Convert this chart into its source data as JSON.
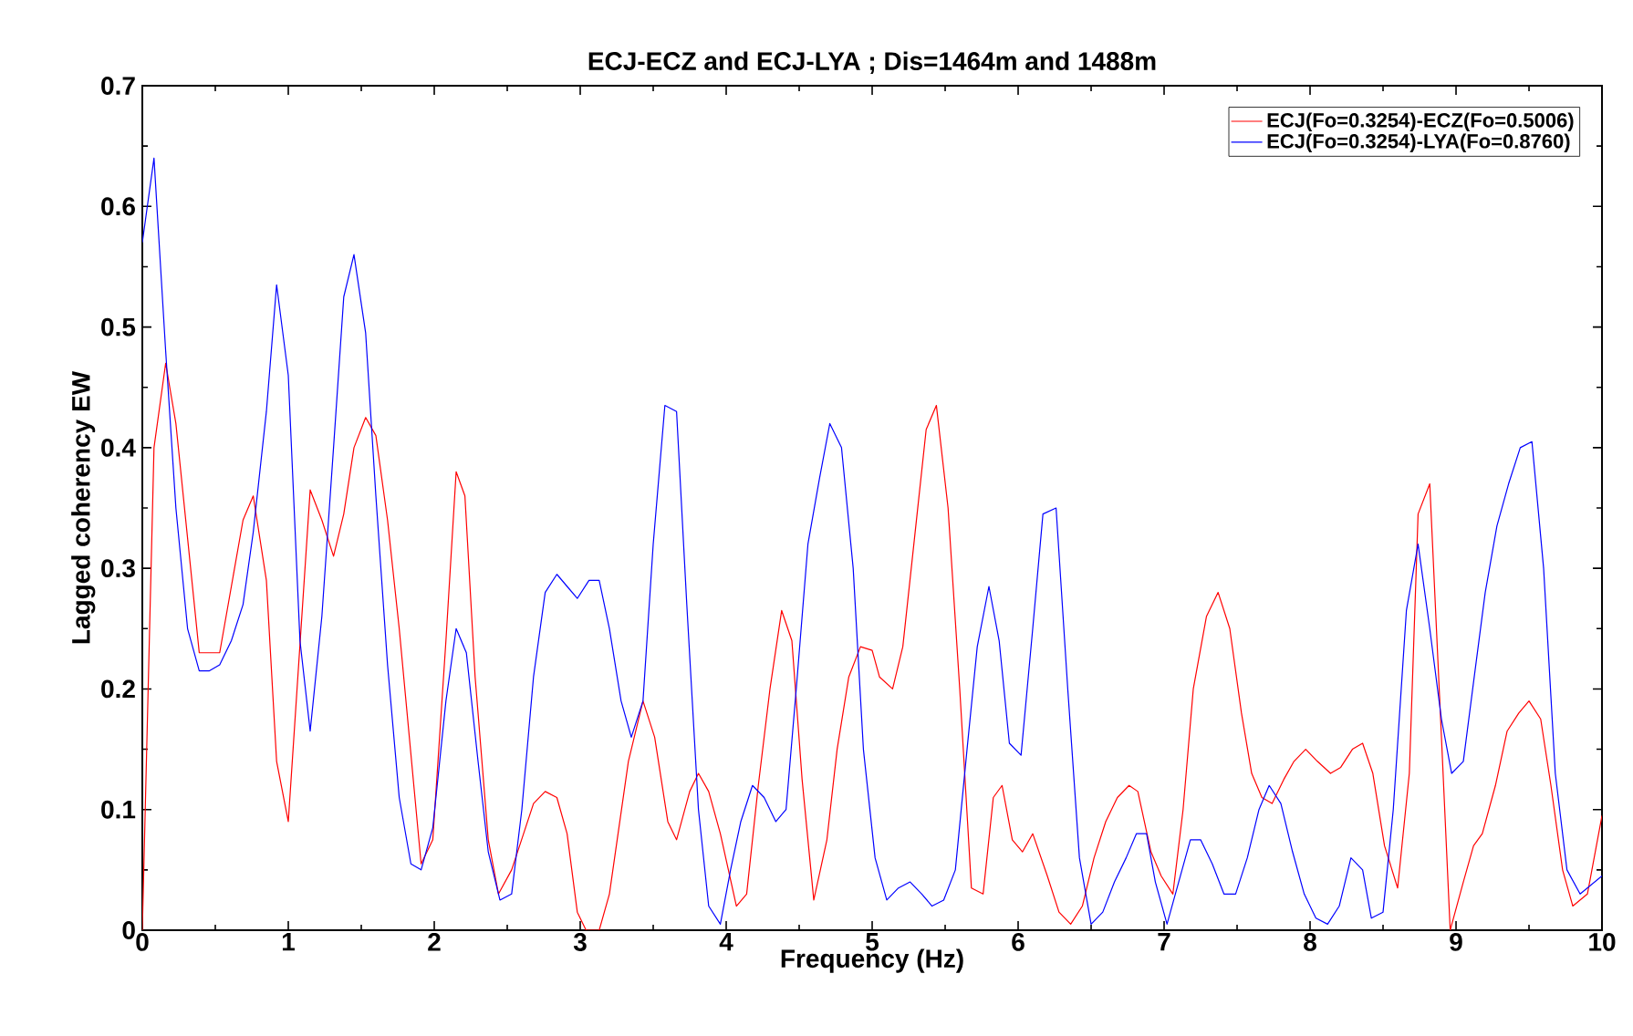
{
  "chart_data": {
    "type": "line",
    "title": "ECJ-ECZ and ECJ-LYA ; Dis=1464m and 1488m",
    "xlabel": "Frequency (Hz)",
    "ylabel": "Lagged coherency EW",
    "xlim": [
      0,
      10
    ],
    "ylim": [
      0,
      0.7
    ],
    "xticks": [
      0,
      1,
      2,
      3,
      4,
      5,
      6,
      7,
      8,
      9,
      10
    ],
    "yticks": [
      0,
      0.1,
      0.2,
      0.3,
      0.4,
      0.5,
      0.6,
      0.7
    ],
    "grid": false,
    "legend": "top right",
    "marker": "none",
    "line_style": "solid",
    "series": [
      {
        "name": "ECJ(Fo=0.3254)-ECZ(Fo=0.5006)",
        "color": "#ff0000",
        "x": [
          0,
          0.08,
          0.16,
          0.23,
          0.39,
          0.53,
          0.69,
          0.76,
          0.85,
          0.92,
          1.0,
          1.15,
          1.23,
          1.31,
          1.38,
          1.45,
          1.53,
          1.6,
          1.68,
          1.76,
          1.91,
          1.99,
          2.08,
          2.15,
          2.21,
          2.28,
          2.37,
          2.44,
          2.53,
          2.68,
          2.76,
          2.84,
          2.91,
          2.98,
          3.04,
          3.13,
          3.2,
          3.33,
          3.43,
          3.51,
          3.6,
          3.66,
          3.75,
          3.81,
          3.88,
          3.96,
          4.07,
          4.14,
          4.22,
          4.3,
          4.38,
          4.45,
          4.52,
          4.6,
          4.69,
          4.76,
          4.84,
          4.92,
          5.0,
          5.05,
          5.14,
          5.21,
          5.29,
          5.37,
          5.44,
          5.52,
          5.6,
          5.68,
          5.76,
          5.83,
          5.89,
          5.96,
          6.03,
          6.1,
          6.2,
          6.28,
          6.36,
          6.44,
          6.52,
          6.6,
          6.68,
          6.76,
          6.82,
          6.91,
          6.98,
          7.06,
          7.13,
          7.2,
          7.29,
          7.37,
          7.45,
          7.53,
          7.6,
          7.67,
          7.74,
          7.82,
          7.89,
          7.97,
          8.05,
          8.14,
          8.21,
          8.29,
          8.36,
          8.43,
          8.51,
          8.6,
          8.68,
          8.74,
          8.82,
          8.9,
          8.96,
          9.05,
          9.12,
          9.18,
          9.27,
          9.35,
          9.43,
          9.5,
          9.58,
          9.65,
          9.73,
          9.8,
          9.9,
          10
        ],
        "values": [
          0,
          0.4,
          0.47,
          0.42,
          0.23,
          0.23,
          0.34,
          0.36,
          0.29,
          0.14,
          0.09,
          0.365,
          0.34,
          0.31,
          0.345,
          0.4,
          0.425,
          0.41,
          0.34,
          0.25,
          0.055,
          0.075,
          0.24,
          0.38,
          0.36,
          0.21,
          0.075,
          0.03,
          0.05,
          0.105,
          0.115,
          0.11,
          0.08,
          0.015,
          0,
          0,
          0.03,
          0.14,
          0.19,
          0.16,
          0.09,
          0.075,
          0.115,
          0.13,
          0.115,
          0.08,
          0.02,
          0.03,
          0.12,
          0.2,
          0.265,
          0.24,
          0.125,
          0.025,
          0.075,
          0.15,
          0.21,
          0.235,
          0.232,
          0.21,
          0.2,
          0.235,
          0.325,
          0.415,
          0.435,
          0.35,
          0.2,
          0.035,
          0.03,
          0.11,
          0.12,
          0.075,
          0.065,
          0.08,
          0.045,
          0.015,
          0.005,
          0.02,
          0.06,
          0.09,
          0.11,
          0.12,
          0.115,
          0.065,
          0.045,
          0.03,
          0.1,
          0.2,
          0.26,
          0.28,
          0.25,
          0.18,
          0.13,
          0.11,
          0.105,
          0.125,
          0.14,
          0.15,
          0.14,
          0.13,
          0.135,
          0.15,
          0.155,
          0.13,
          0.07,
          0.035,
          0.13,
          0.345,
          0.37,
          0.16,
          0,
          0.04,
          0.07,
          0.08,
          0.12,
          0.165,
          0.18,
          0.19,
          0.175,
          0.12,
          0.05,
          0.02,
          0.03,
          0.095
        ]
      },
      {
        "name": "ECJ(Fo=0.3254)-LYA(Fo=0.8760)",
        "color": "#0000ff",
        "x": [
          0,
          0.08,
          0.16,
          0.23,
          0.31,
          0.39,
          0.46,
          0.53,
          0.61,
          0.69,
          0.76,
          0.85,
          0.92,
          1.0,
          1.08,
          1.15,
          1.23,
          1.31,
          1.38,
          1.45,
          1.53,
          1.6,
          1.68,
          1.76,
          1.84,
          1.91,
          1.99,
          2.08,
          2.15,
          2.22,
          2.3,
          2.37,
          2.45,
          2.53,
          2.6,
          2.68,
          2.76,
          2.84,
          2.91,
          2.98,
          3.06,
          3.13,
          3.2,
          3.28,
          3.35,
          3.43,
          3.5,
          3.58,
          3.66,
          3.73,
          3.81,
          3.88,
          3.96,
          4.03,
          4.1,
          4.18,
          4.26,
          4.34,
          4.41,
          4.48,
          4.56,
          4.64,
          4.71,
          4.79,
          4.87,
          4.94,
          5.02,
          5.1,
          5.18,
          5.26,
          5.34,
          5.41,
          5.49,
          5.57,
          5.65,
          5.72,
          5.8,
          5.87,
          5.94,
          6.02,
          6.1,
          6.17,
          6.26,
          6.34,
          6.42,
          6.5,
          6.58,
          6.66,
          6.74,
          6.81,
          6.88,
          6.94,
          7.02,
          7.1,
          7.18,
          7.25,
          7.33,
          7.41,
          7.49,
          7.57,
          7.65,
          7.72,
          7.8,
          7.88,
          7.96,
          8.04,
          8.12,
          8.2,
          8.28,
          8.36,
          8.42,
          8.5,
          8.57,
          8.66,
          8.74,
          8.82,
          8.9,
          8.97,
          9.05,
          9.13,
          9.2,
          9.28,
          9.36,
          9.44,
          9.52,
          9.6,
          9.68,
          9.76,
          9.85,
          10
        ],
        "values": [
          0.57,
          0.64,
          0.48,
          0.35,
          0.25,
          0.215,
          0.215,
          0.22,
          0.24,
          0.27,
          0.33,
          0.43,
          0.535,
          0.46,
          0.24,
          0.165,
          0.26,
          0.4,
          0.525,
          0.56,
          0.495,
          0.36,
          0.22,
          0.11,
          0.055,
          0.05,
          0.085,
          0.19,
          0.25,
          0.23,
          0.14,
          0.065,
          0.025,
          0.03,
          0.1,
          0.21,
          0.28,
          0.295,
          0.285,
          0.275,
          0.29,
          0.29,
          0.25,
          0.19,
          0.16,
          0.19,
          0.32,
          0.435,
          0.43,
          0.27,
          0.1,
          0.02,
          0.005,
          0.05,
          0.09,
          0.12,
          0.11,
          0.09,
          0.1,
          0.2,
          0.32,
          0.375,
          0.42,
          0.4,
          0.3,
          0.15,
          0.06,
          0.025,
          0.035,
          0.04,
          0.03,
          0.02,
          0.025,
          0.05,
          0.15,
          0.235,
          0.285,
          0.24,
          0.155,
          0.145,
          0.25,
          0.345,
          0.35,
          0.2,
          0.06,
          0.005,
          0.015,
          0.04,
          0.06,
          0.08,
          0.08,
          0.04,
          0.005,
          0.04,
          0.075,
          0.075,
          0.055,
          0.03,
          0.03,
          0.06,
          0.1,
          0.12,
          0.105,
          0.065,
          0.03,
          0.01,
          0.005,
          0.02,
          0.06,
          0.05,
          0.01,
          0.015,
          0.1,
          0.265,
          0.32,
          0.25,
          0.175,
          0.13,
          0.14,
          0.215,
          0.28,
          0.335,
          0.37,
          0.4,
          0.405,
          0.3,
          0.13,
          0.05,
          0.03,
          0.045
        ]
      }
    ]
  }
}
